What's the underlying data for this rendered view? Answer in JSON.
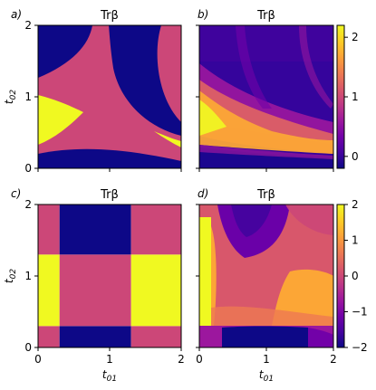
{
  "colors": {
    "plasma": [
      "#0d0887",
      "#46039f",
      "#7201a8",
      "#9c179e",
      "#bd3786",
      "#d8576b",
      "#ed7953",
      "#fb9f3a",
      "#fdca26",
      "#f0f921"
    ],
    "axis": "#000000"
  },
  "chart_data": [
    {
      "panel": "a)",
      "type": "heatmap",
      "title": "Trβ",
      "xlabel": "",
      "ylabel": "t02",
      "xlim": [
        0,
        2
      ],
      "ylim": [
        0,
        2
      ],
      "xticks": [
        "0",
        "1",
        "2"
      ],
      "yticks": [
        "0",
        "1",
        "2"
      ],
      "show_xticklabels": false,
      "show_yticklabels": true,
      "levels": [
        -2,
        0,
        2
      ],
      "description_values": "piecewise constant: -2 (dark), 0 (pink), 2 (yellow)"
    },
    {
      "panel": "b)",
      "type": "heatmap",
      "title": "Trβ",
      "xlabel": "",
      "ylabel": "",
      "xlim": [
        0,
        2
      ],
      "ylim": [
        0,
        2
      ],
      "xticks": [
        "0",
        "1",
        "2"
      ],
      "yticks": [
        "0",
        "1",
        "2"
      ],
      "show_xticklabels": false,
      "show_yticklabels": false,
      "colorbar": {
        "ticks": [
          "0",
          "1",
          "2"
        ],
        "range": [
          -0.2,
          2.2
        ]
      }
    },
    {
      "panel": "c)",
      "type": "heatmap",
      "title": "Trβ",
      "xlabel": "t01",
      "ylabel": "t02",
      "xlim": [
        0,
        2
      ],
      "ylim": [
        0,
        2
      ],
      "xticks": [
        "0",
        "1",
        "2"
      ],
      "yticks": [
        "0",
        "1",
        "2"
      ],
      "show_xticklabels": true,
      "show_yticklabels": true,
      "grid": {
        "x_edges": [
          0.3,
          1.3
        ],
        "y_edges": [
          0.3,
          1.3
        ],
        "values": [
          [
            0,
            -2,
            0
          ],
          [
            2,
            0,
            2
          ],
          [
            0,
            -2,
            0
          ]
        ]
      }
    },
    {
      "panel": "d)",
      "type": "heatmap",
      "title": "Trβ",
      "xlabel": "t01",
      "ylabel": "",
      "xlim": [
        0,
        2
      ],
      "ylim": [
        0,
        2
      ],
      "xticks": [
        "0",
        "1",
        "2"
      ],
      "yticks": [
        "0",
        "1",
        "2"
      ],
      "show_xticklabels": true,
      "show_yticklabels": false,
      "colorbar": {
        "ticks": [
          "2",
          "1",
          "0",
          "−1",
          "−2"
        ],
        "range": [
          -2,
          2
        ]
      }
    }
  ]
}
